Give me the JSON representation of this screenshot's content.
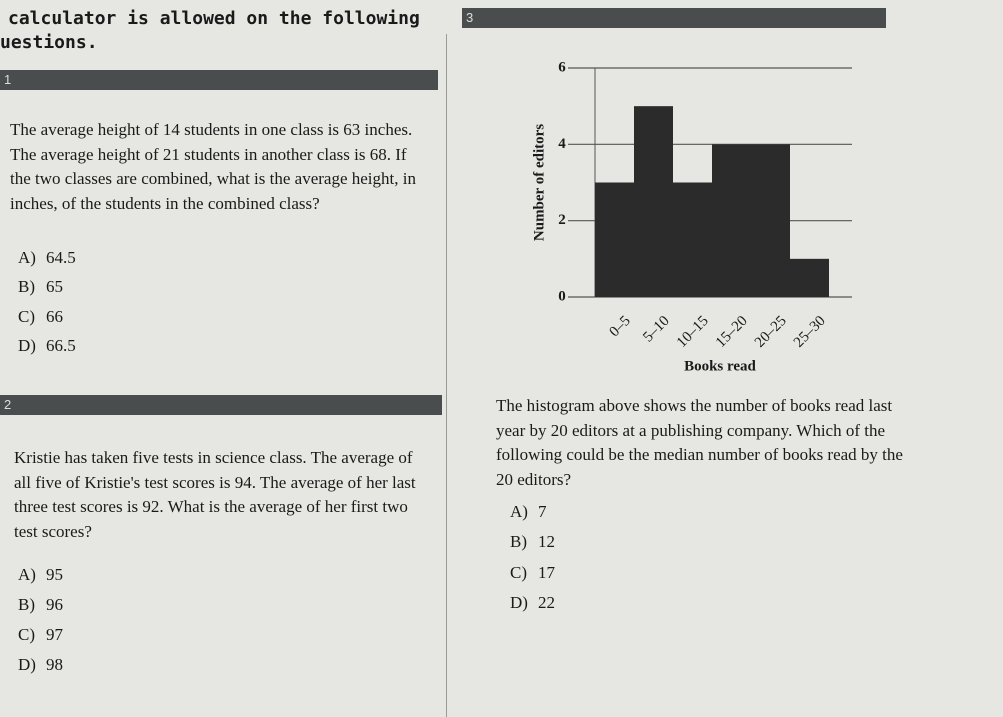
{
  "header": {
    "line1": "calculator is allowed on the following",
    "line2": "uestions."
  },
  "questions": [
    {
      "number": "1",
      "text": "The average height of 14 students in one class is 63 inches. The average height of 21 students in another class is 68. If the two classes are combined, what is the average height, in inches, of the students in the combined class?",
      "choices": [
        {
          "letter": "A)",
          "text": "64.5"
        },
        {
          "letter": "B)",
          "text": "65"
        },
        {
          "letter": "C)",
          "text": "66"
        },
        {
          "letter": "D)",
          "text": "66.5"
        }
      ]
    },
    {
      "number": "2",
      "text": "Kristie has taken five tests in science class. The average of all five of Kristie's test scores is 94. The average of her last three test scores is 92. What is the average of her first two test scores?",
      "choices": [
        {
          "letter": "A)",
          "text": "95"
        },
        {
          "letter": "B)",
          "text": "96"
        },
        {
          "letter": "C)",
          "text": "97"
        },
        {
          "letter": "D)",
          "text": "98"
        }
      ]
    },
    {
      "number": "3",
      "text": "The histogram above shows the number of books read last year by 20 editors at a publishing company. Which of the following could be the median number of books read by the 20 editors?",
      "choices": [
        {
          "letter": "A)",
          "text": "7"
        },
        {
          "letter": "B)",
          "text": "12"
        },
        {
          "letter": "C)",
          "text": "17"
        },
        {
          "letter": "D)",
          "text": "22"
        }
      ]
    }
  ],
  "chart_data": {
    "type": "bar",
    "xlabel": "Books read",
    "ylabel": "Number of editors",
    "categories": [
      "0–5",
      "5–10",
      "10–15",
      "15–20",
      "20–25",
      "25–30"
    ],
    "values": [
      3,
      5,
      3,
      4,
      4,
      1
    ],
    "color": "#2b2b2b",
    "ylim": [
      0,
      6
    ],
    "yticks": [
      0,
      2,
      4,
      6
    ],
    "grid": true
  }
}
